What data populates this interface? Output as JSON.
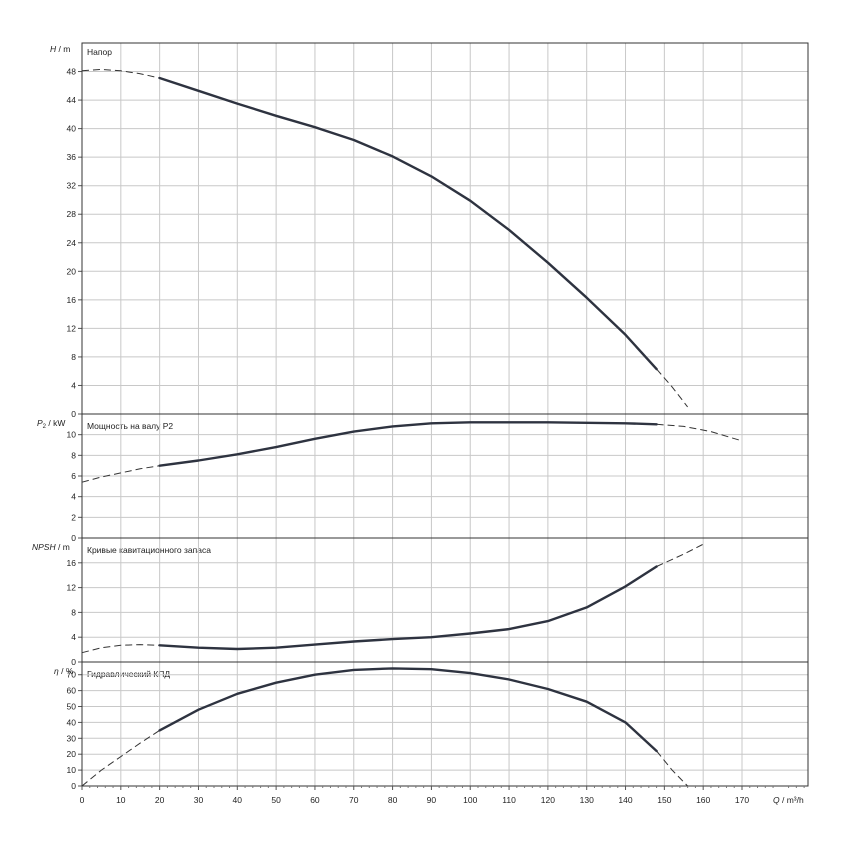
{
  "chart_data": {
    "type": "line",
    "x_axis": {
      "label_main": "Q",
      "label_unit": "m³/h",
      "range": [
        0,
        187
      ],
      "ticks": [
        0,
        10,
        20,
        30,
        40,
        50,
        60,
        70,
        80,
        90,
        100,
        110,
        120,
        130,
        140,
        150,
        160,
        170
      ]
    },
    "panels": [
      {
        "title": "Напор",
        "ylabel_main": "H",
        "ylabel_unit": "m",
        "ylim": [
          0,
          52
        ],
        "yticks": [
          0,
          4,
          8,
          12,
          16,
          20,
          24,
          28,
          32,
          36,
          40,
          44,
          48
        ],
        "solid": [
          [
            20,
            47.1
          ],
          [
            30,
            45.3
          ],
          [
            40,
            43.5
          ],
          [
            50,
            41.8
          ],
          [
            60,
            40.2
          ],
          [
            70,
            38.4
          ],
          [
            80,
            36.1
          ],
          [
            90,
            33.3
          ],
          [
            100,
            29.9
          ],
          [
            110,
            25.8
          ],
          [
            120,
            21.2
          ],
          [
            130,
            16.3
          ],
          [
            140,
            11.1
          ],
          [
            148,
            6.3
          ]
        ],
        "dashed_left": [
          [
            0,
            48.1
          ],
          [
            5,
            48.3
          ],
          [
            10,
            48.1
          ],
          [
            15,
            47.7
          ],
          [
            20,
            47.1
          ]
        ],
        "dashed_right": [
          [
            148,
            6.3
          ],
          [
            152,
            3.8
          ],
          [
            156,
            1.0
          ]
        ]
      },
      {
        "title": "Мощность на валу P2",
        "ylabel_main": "P",
        "ylabel_sub": "2",
        "ylabel_unit": "kW",
        "ylim": [
          0,
          12
        ],
        "yticks": [
          0,
          2,
          4,
          6,
          8,
          10
        ],
        "solid": [
          [
            20,
            7.0
          ],
          [
            30,
            7.5
          ],
          [
            40,
            8.1
          ],
          [
            50,
            8.8
          ],
          [
            60,
            9.6
          ],
          [
            70,
            10.3
          ],
          [
            80,
            10.8
          ],
          [
            90,
            11.1
          ],
          [
            100,
            11.2
          ],
          [
            110,
            11.2
          ],
          [
            120,
            11.2
          ],
          [
            130,
            11.15
          ],
          [
            140,
            11.1
          ],
          [
            148,
            11.0
          ]
        ],
        "dashed_left": [
          [
            0,
            5.4
          ],
          [
            5,
            5.9
          ],
          [
            10,
            6.3
          ],
          [
            15,
            6.7
          ],
          [
            20,
            7.0
          ]
        ],
        "dashed_right": [
          [
            148,
            11.0
          ],
          [
            155,
            10.8
          ],
          [
            162,
            10.3
          ],
          [
            170,
            9.4
          ]
        ]
      },
      {
        "title": "Кривые кавитационного запаса",
        "ylabel_main": "NPSH",
        "ylabel_unit": "m",
        "ylim": [
          0,
          20
        ],
        "yticks": [
          0,
          4,
          8,
          12,
          16
        ],
        "solid": [
          [
            20,
            2.7
          ],
          [
            30,
            2.3
          ],
          [
            40,
            2.1
          ],
          [
            50,
            2.3
          ],
          [
            60,
            2.8
          ],
          [
            70,
            3.3
          ],
          [
            80,
            3.7
          ],
          [
            90,
            4.0
          ],
          [
            100,
            4.6
          ],
          [
            110,
            5.3
          ],
          [
            120,
            6.6
          ],
          [
            130,
            8.8
          ],
          [
            140,
            12.2
          ],
          [
            148,
            15.4
          ]
        ],
        "dashed_left": [
          [
            0,
            1.5
          ],
          [
            5,
            2.3
          ],
          [
            10,
            2.7
          ],
          [
            15,
            2.8
          ],
          [
            20,
            2.7
          ]
        ],
        "dashed_right": [
          [
            148,
            15.4
          ],
          [
            155,
            17.4
          ],
          [
            160,
            19.0
          ]
        ]
      },
      {
        "title": "Гидравлический КПД",
        "ylabel_main": "η",
        "ylabel_unit": "%",
        "ylim": [
          0,
          78
        ],
        "yticks": [
          0,
          10,
          20,
          30,
          40,
          50,
          60,
          70
        ],
        "solid": [
          [
            20,
            35
          ],
          [
            30,
            48
          ],
          [
            40,
            58
          ],
          [
            50,
            65
          ],
          [
            60,
            70
          ],
          [
            70,
            73
          ],
          [
            80,
            74
          ],
          [
            90,
            73.5
          ],
          [
            100,
            71
          ],
          [
            110,
            67
          ],
          [
            120,
            61
          ],
          [
            130,
            53
          ],
          [
            140,
            40
          ],
          [
            148,
            22
          ]
        ],
        "dashed_left": [
          [
            0,
            0
          ],
          [
            5,
            10
          ],
          [
            10,
            18.5
          ],
          [
            15,
            27
          ],
          [
            20,
            35
          ]
        ],
        "dashed_right": [
          [
            148,
            22
          ],
          [
            152,
            10
          ],
          [
            156,
            0
          ]
        ]
      }
    ]
  }
}
